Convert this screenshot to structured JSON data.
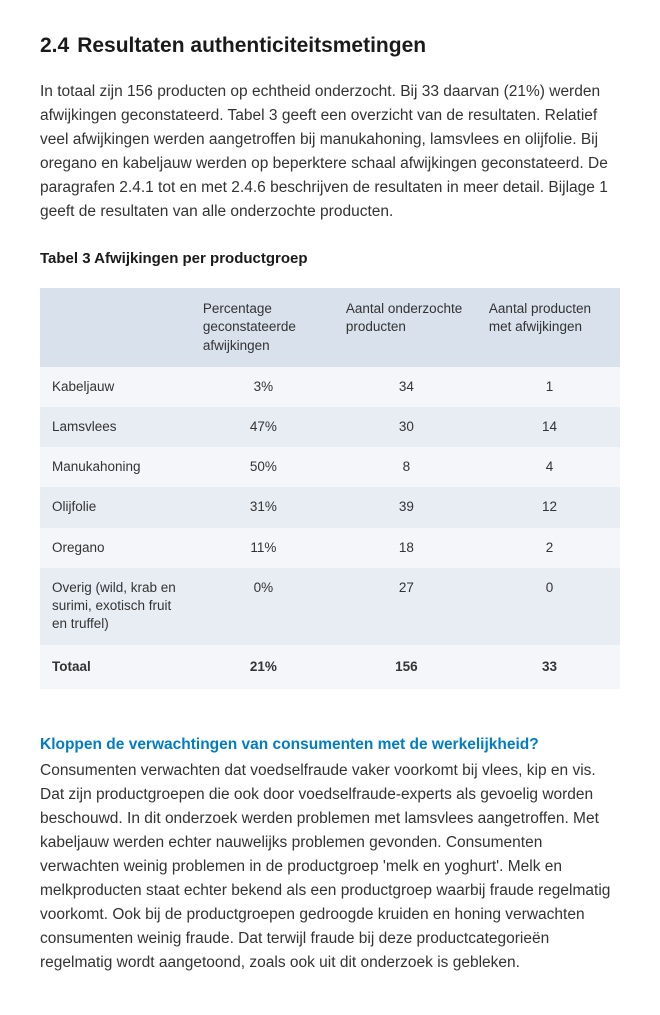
{
  "heading": {
    "number": "2.4",
    "title": "Resultaten authenticiteitsmetingen"
  },
  "intro": "In totaal zijn 156 producten op echtheid onderzocht. Bij 33 daarvan (21%) werden afwijkingen geconstateerd. Tabel 3 geeft een overzicht van de resultaten. Relatief veel afwijkingen werden aangetroffen bij manukahoning, lamsvlees en olijfolie. Bij oregano en kabeljauw werden op beperktere schaal afwijkingen geconstateerd. De paragrafen 2.4.1 tot en met 2.4.6 beschrijven de resultaten in meer detail. Bijlage 1 geeft de resultaten van alle onderzochte producten.",
  "table": {
    "caption": "Tabel 3 Afwijkingen per productgroep",
    "columns": [
      "",
      "Percentage geconstateerde afwijkingen",
      "Aantal onderzochte producten",
      "Aantal producten met afwijkingen"
    ],
    "rows": [
      [
        "Kabeljauw",
        "3%",
        "34",
        "1"
      ],
      [
        "Lamsvlees",
        "47%",
        "30",
        "14"
      ],
      [
        "Manukahoning",
        "50%",
        "8",
        "4"
      ],
      [
        "Olijfolie",
        "31%",
        "39",
        "12"
      ],
      [
        "Oregano",
        "11%",
        "18",
        "2"
      ],
      [
        "Overig (wild, krab en surimi, exotisch fruit en truffel)",
        "0%",
        "27",
        "0"
      ]
    ],
    "total": [
      "Totaal",
      "21%",
      "156",
      "33"
    ],
    "header_bg": "#d8e1ec",
    "row_odd_bg": "#f4f6fa",
    "row_even_bg": "#e8edf4"
  },
  "callout": {
    "heading": "Kloppen de verwachtingen van consumenten met de werkelijkheid?",
    "heading_color": "#007dc5",
    "body": "Consumenten verwachten dat voedselfraude vaker voorkomt bij vlees, kip en vis. Dat zijn productgroepen die ook door voedselfraude-experts als gevoelig worden beschouwd. In dit onderzoek werden problemen met lamsvlees aangetroffen. Met kabeljauw werden echter nauwelijks problemen gevonden. Consumenten verwachten weinig problemen in de productgroep 'melk en yoghurt'. Melk en melkproducten staat echter bekend als een productgroep waarbij fraude regelmatig voorkomt. Ook bij de productgroepen gedroogde kruiden en honing verwachten consumenten weinig fraude. Dat terwijl fraude bij deze productcategorieën regelmatig wordt aangetoond, zoals ook uit dit onderzoek is gebleken."
  }
}
